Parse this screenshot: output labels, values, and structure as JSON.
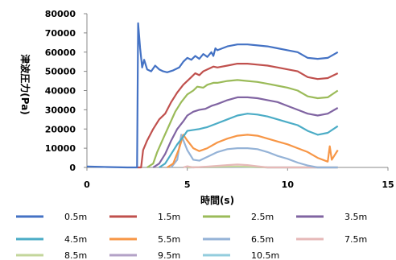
{
  "chart_data": {
    "type": "line",
    "xlabel": "時間(s)",
    "ylabel": "津波圧力(Pa)",
    "xlim": [
      0,
      15
    ],
    "ylim": [
      0,
      80000
    ],
    "x_ticks": [
      0,
      5,
      10,
      15
    ],
    "y_ticks": [
      0,
      10000,
      20000,
      30000,
      40000,
      50000,
      60000,
      70000,
      80000
    ],
    "y_tick_labels": [
      "0",
      "10000",
      "20000",
      "30000",
      "40000",
      "50000",
      "60000",
      "70000",
      "80000"
    ],
    "x_tick_labels": [
      "0",
      "5",
      "10",
      "15"
    ],
    "grid": false,
    "legend_position": "bottom",
    "series": [
      {
        "name": "0.5m",
        "color": "#4472C4",
        "points": [
          [
            0,
            500
          ],
          [
            1,
            200
          ],
          [
            2,
            0
          ],
          [
            2.5,
            0
          ],
          [
            2.55,
            75000
          ],
          [
            2.65,
            62000
          ],
          [
            2.75,
            52000
          ],
          [
            2.85,
            56000
          ],
          [
            3.0,
            51000
          ],
          [
            3.2,
            50000
          ],
          [
            3.4,
            53000
          ],
          [
            3.6,
            51000
          ],
          [
            3.8,
            50000
          ],
          [
            4.0,
            49500
          ],
          [
            4.3,
            50500
          ],
          [
            4.6,
            52000
          ],
          [
            4.8,
            55000
          ],
          [
            5.0,
            57000
          ],
          [
            5.2,
            56000
          ],
          [
            5.4,
            58000
          ],
          [
            5.6,
            56500
          ],
          [
            5.8,
            59000
          ],
          [
            6.0,
            57500
          ],
          [
            6.2,
            60000
          ],
          [
            6.3,
            58000
          ],
          [
            6.4,
            62000
          ],
          [
            6.5,
            61000
          ],
          [
            7.0,
            63000
          ],
          [
            7.5,
            64000
          ],
          [
            8.0,
            64000
          ],
          [
            8.5,
            63500
          ],
          [
            9.0,
            63000
          ],
          [
            9.5,
            62000
          ],
          [
            10.0,
            61000
          ],
          [
            10.5,
            60000
          ],
          [
            11.0,
            57000
          ],
          [
            11.5,
            56500
          ],
          [
            12.0,
            57000
          ],
          [
            12.5,
            60000
          ]
        ]
      },
      {
        "name": "1.5m",
        "color": "#C0504D",
        "points": [
          [
            2.5,
            0
          ],
          [
            2.7,
            0
          ],
          [
            2.8,
            9000
          ],
          [
            3.0,
            14000
          ],
          [
            3.3,
            20000
          ],
          [
            3.6,
            25000
          ],
          [
            3.9,
            28000
          ],
          [
            4.2,
            34000
          ],
          [
            4.5,
            39000
          ],
          [
            4.8,
            43000
          ],
          [
            5.0,
            45000
          ],
          [
            5.2,
            47000
          ],
          [
            5.4,
            49000
          ],
          [
            5.6,
            48000
          ],
          [
            5.8,
            50000
          ],
          [
            6.0,
            51000
          ],
          [
            6.3,
            52500
          ],
          [
            6.5,
            52000
          ],
          [
            7.0,
            53000
          ],
          [
            7.5,
            54000
          ],
          [
            8.0,
            54000
          ],
          [
            8.5,
            53500
          ],
          [
            9.0,
            53000
          ],
          [
            9.5,
            52000
          ],
          [
            10.0,
            51000
          ],
          [
            10.5,
            50000
          ],
          [
            11.0,
            47000
          ],
          [
            11.5,
            46000
          ],
          [
            12.0,
            46500
          ],
          [
            12.5,
            49000
          ]
        ]
      },
      {
        "name": "2.5m",
        "color": "#9BBB59",
        "points": [
          [
            3.0,
            0
          ],
          [
            3.3,
            2000
          ],
          [
            3.5,
            8000
          ],
          [
            3.8,
            15000
          ],
          [
            4.1,
            22000
          ],
          [
            4.4,
            29000
          ],
          [
            4.7,
            34000
          ],
          [
            5.0,
            38000
          ],
          [
            5.3,
            40000
          ],
          [
            5.5,
            42000
          ],
          [
            5.8,
            41500
          ],
          [
            6.0,
            43000
          ],
          [
            6.3,
            44000
          ],
          [
            6.5,
            44000
          ],
          [
            7.0,
            45000
          ],
          [
            7.5,
            45500
          ],
          [
            8.0,
            45000
          ],
          [
            8.5,
            44500
          ],
          [
            9.0,
            43500
          ],
          [
            9.5,
            42500
          ],
          [
            10.0,
            41500
          ],
          [
            10.5,
            40000
          ],
          [
            11.0,
            37000
          ],
          [
            11.5,
            36000
          ],
          [
            12.0,
            36500
          ],
          [
            12.5,
            40000
          ]
        ]
      },
      {
        "name": "3.5m",
        "color": "#8064A2",
        "points": [
          [
            3.3,
            0
          ],
          [
            3.6,
            2000
          ],
          [
            3.9,
            7000
          ],
          [
            4.2,
            14000
          ],
          [
            4.5,
            20000
          ],
          [
            4.8,
            24000
          ],
          [
            5.0,
            27000
          ],
          [
            5.3,
            29000
          ],
          [
            5.6,
            30000
          ],
          [
            5.9,
            30500
          ],
          [
            6.2,
            32000
          ],
          [
            6.5,
            33000
          ],
          [
            7.0,
            35000
          ],
          [
            7.5,
            36500
          ],
          [
            8.0,
            36500
          ],
          [
            8.5,
            36000
          ],
          [
            9.0,
            35000
          ],
          [
            9.5,
            34000
          ],
          [
            10.0,
            32000
          ],
          [
            10.5,
            30000
          ],
          [
            11.0,
            28000
          ],
          [
            11.5,
            27000
          ],
          [
            12.0,
            28000
          ],
          [
            12.5,
            31000
          ]
        ]
      },
      {
        "name": "4.5m",
        "color": "#4BACC6",
        "points": [
          [
            3.6,
            0
          ],
          [
            3.9,
            2000
          ],
          [
            4.2,
            7000
          ],
          [
            4.5,
            12000
          ],
          [
            4.8,
            16000
          ],
          [
            5.0,
            19000
          ],
          [
            5.3,
            19500
          ],
          [
            5.6,
            20000
          ],
          [
            6.0,
            21000
          ],
          [
            6.5,
            23000
          ],
          [
            7.0,
            25000
          ],
          [
            7.5,
            27000
          ],
          [
            8.0,
            28000
          ],
          [
            8.5,
            27500
          ],
          [
            9.0,
            26500
          ],
          [
            9.5,
            25000
          ],
          [
            10.0,
            23500
          ],
          [
            10.5,
            22000
          ],
          [
            11.0,
            19000
          ],
          [
            11.5,
            17000
          ],
          [
            12.0,
            18000
          ],
          [
            12.5,
            21500
          ]
        ]
      },
      {
        "name": "5.5m",
        "color": "#F79646",
        "points": [
          [
            4.0,
            0
          ],
          [
            4.3,
            2000
          ],
          [
            4.6,
            10000
          ],
          [
            4.8,
            17000
          ],
          [
            5.0,
            14000
          ],
          [
            5.3,
            10000
          ],
          [
            5.6,
            8500
          ],
          [
            6.0,
            10000
          ],
          [
            6.5,
            13000
          ],
          [
            7.0,
            15000
          ],
          [
            7.5,
            16500
          ],
          [
            8.0,
            17000
          ],
          [
            8.5,
            16500
          ],
          [
            9.0,
            15000
          ],
          [
            9.5,
            13500
          ],
          [
            10.0,
            12000
          ],
          [
            10.5,
            10000
          ],
          [
            11.0,
            8000
          ],
          [
            11.5,
            5000
          ],
          [
            12.0,
            3000
          ],
          [
            12.1,
            11000
          ],
          [
            12.2,
            4000
          ],
          [
            12.5,
            9000
          ]
        ]
      },
      {
        "name": "6.5m",
        "color": "#95B3D7",
        "points": [
          [
            4.2,
            0
          ],
          [
            4.5,
            4000
          ],
          [
            4.7,
            17000
          ],
          [
            4.85,
            13000
          ],
          [
            5.0,
            9000
          ],
          [
            5.3,
            4000
          ],
          [
            5.6,
            3500
          ],
          [
            6.0,
            5500
          ],
          [
            6.5,
            8000
          ],
          [
            7.0,
            9500
          ],
          [
            7.5,
            10000
          ],
          [
            8.0,
            10000
          ],
          [
            8.5,
            9500
          ],
          [
            9.0,
            8000
          ],
          [
            9.5,
            6000
          ],
          [
            10.0,
            4500
          ],
          [
            10.5,
            2500
          ],
          [
            11.0,
            1000
          ],
          [
            11.5,
            0
          ],
          [
            12.5,
            0
          ]
        ]
      },
      {
        "name": "7.5m",
        "color": "#E6B9B8",
        "points": [
          [
            4.8,
            0
          ],
          [
            5.0,
            600
          ],
          [
            5.3,
            0
          ],
          [
            6.0,
            400
          ],
          [
            7.0,
            1200
          ],
          [
            7.5,
            1500
          ],
          [
            8.0,
            1200
          ],
          [
            8.5,
            600
          ],
          [
            9.0,
            0
          ],
          [
            12.5,
            0
          ]
        ]
      },
      {
        "name": "8.5m",
        "color": "#C3D69B",
        "points": [
          [
            5.0,
            0
          ],
          [
            6.5,
            300
          ],
          [
            7.5,
            500
          ],
          [
            8.5,
            200
          ],
          [
            9.0,
            0
          ],
          [
            12.5,
            0
          ]
        ]
      },
      {
        "name": "9.5m",
        "color": "#B3A2C7",
        "points": [
          [
            5.0,
            0
          ],
          [
            7.0,
            200
          ],
          [
            8.0,
            300
          ],
          [
            9.0,
            0
          ],
          [
            12.5,
            0
          ]
        ]
      },
      {
        "name": "10.5m",
        "color": "#93CDDD",
        "points": [
          [
            5.0,
            0
          ],
          [
            7.0,
            150
          ],
          [
            8.0,
            200
          ],
          [
            9.0,
            0
          ],
          [
            12.5,
            0
          ]
        ]
      }
    ]
  }
}
